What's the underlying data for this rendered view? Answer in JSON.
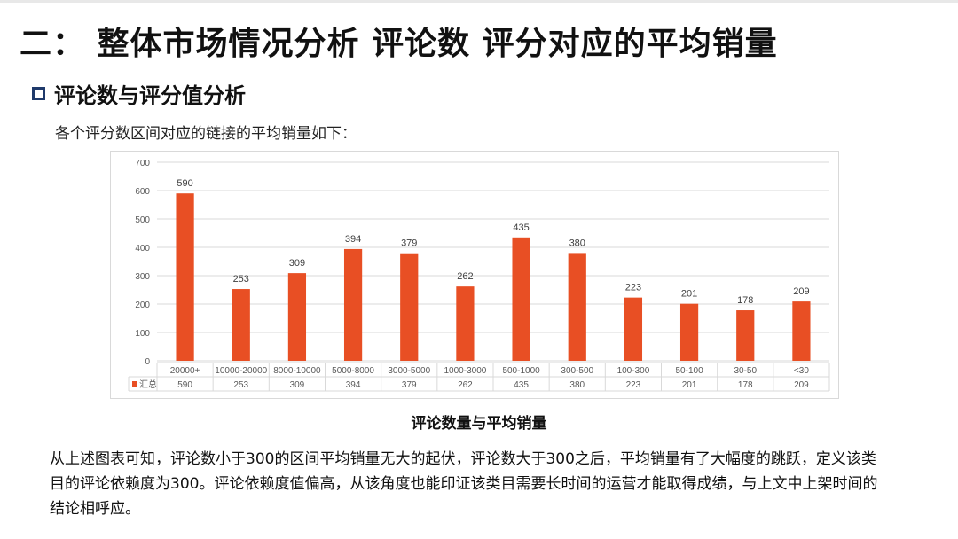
{
  "page": {
    "title": "二： 整体市场情况分析 评论数 评分对应的平均销量",
    "section_heading": "评论数与评分值分析",
    "intro": "各个评分数区间对应的链接的平均销量如下：",
    "caption": "评论数量与平均销量",
    "conclusion_lines": [
      "从上述图表可知，评论数小于300的区间平均销量无大的起伏，评论数大于300之后，平均销量有了大幅度的跳跃，定义该类",
      "目的评论依赖度为300。评论依赖度值偏高，从该角度也能印证该类目需要长时间的运营才能取得成绩，与上文中上架时间的",
      "结论相呼应。"
    ]
  },
  "chart_data": {
    "type": "bar",
    "categories": [
      "20000+",
      "10000-20000",
      "8000-10000",
      "5000-8000",
      "3000-5000",
      "1000-3000",
      "500-1000",
      "300-500",
      "100-300",
      "50-100",
      "30-50",
      "<30"
    ],
    "series": [
      {
        "name": "汇总",
        "values": [
          590,
          253,
          309,
          394,
          379,
          262,
          435,
          380,
          223,
          201,
          178,
          209
        ]
      }
    ],
    "ylim": [
      0,
      700
    ],
    "yticks": [
      0,
      100,
      200,
      300,
      400,
      500,
      600,
      700
    ],
    "grid": true,
    "data_table": true,
    "colors": {
      "bar": "#e84f24",
      "grid": "#d9d9d9",
      "text": "#595959"
    }
  }
}
